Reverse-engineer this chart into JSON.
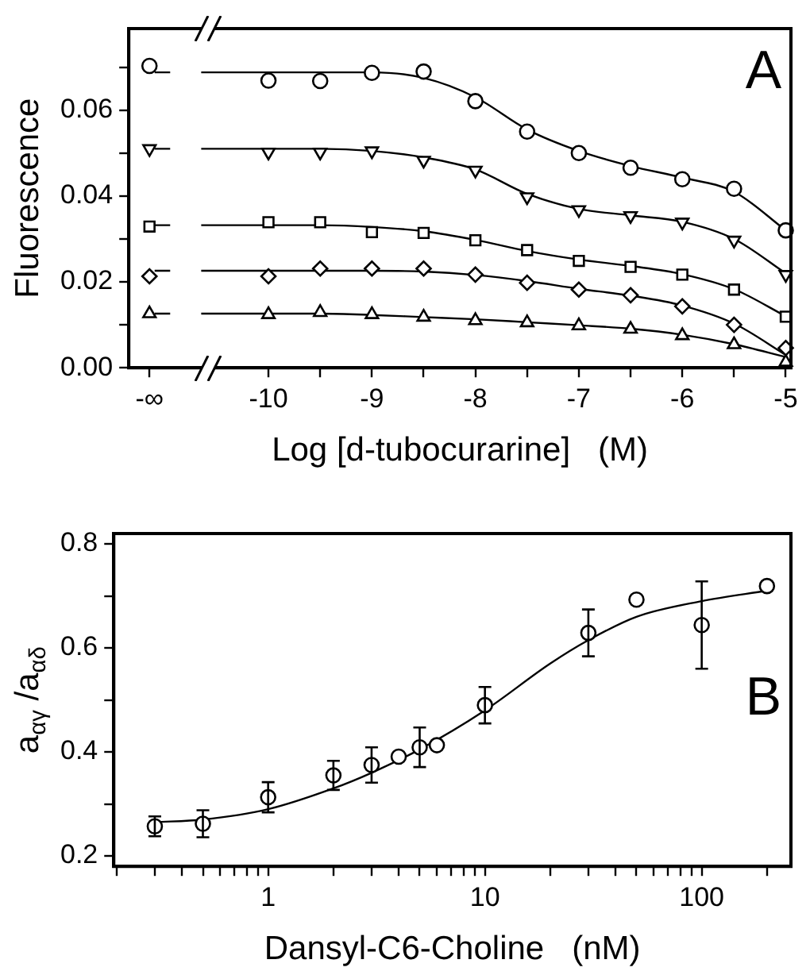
{
  "chart_data": [
    {
      "type": "scatter",
      "xlabel": "Log [d-tubocurarine]   (M)",
      "ylabel": "Fluorescence",
      "annotations": [
        "A"
      ],
      "x": [
        -11.15,
        -10,
        -9.5,
        -9,
        -8.5,
        -8,
        -7.5,
        -7,
        -6.5,
        -6,
        -5.5,
        -5
      ],
      "series": [
        {
          "color": "#000000",
          "marker": "circle",
          "values": [
            0.0703,
            0.0669,
            0.0668,
            0.0687,
            0.069,
            0.0621,
            0.055,
            0.05,
            0.0466,
            0.0439,
            0.0417,
            0.032
          ]
        },
        {
          "color": "#000000",
          "marker": "triangle-down",
          "values": [
            0.051,
            0.0502,
            0.0502,
            0.0505,
            0.0483,
            0.046,
            0.0398,
            0.0368,
            0.0354,
            0.0339,
            0.0297,
            0.0217
          ]
        },
        {
          "color": "#000000",
          "marker": "square",
          "values": [
            0.0329,
            0.0339,
            0.0339,
            0.0316,
            0.0314,
            0.0297,
            0.0274,
            0.0249,
            0.0235,
            0.0217,
            0.0182,
            0.0119
          ]
        },
        {
          "color": "#000000",
          "marker": "diamond",
          "values": [
            0.0213,
            0.0213,
            0.0231,
            0.0231,
            0.0231,
            0.0217,
            0.0198,
            0.0182,
            0.0169,
            0.0143,
            0.01,
            0.0046
          ]
        },
        {
          "color": "#000000",
          "marker": "triangle",
          "values": [
            0.0126,
            0.0124,
            0.0129,
            0.0124,
            0.0118,
            0.011,
            0.0105,
            0.0098,
            0.009,
            0.0075,
            0.0054,
            0.0013
          ]
        },
        {
          "type": "line",
          "color": "#000000",
          "marker": "none",
          "x": [
            -11.1,
            -10.95,
            -10.8,
            -10.65,
            -10,
            -9.5,
            -9,
            -8.5,
            -8,
            -7.5,
            -7,
            -6.5,
            -6,
            -5.5,
            -5
          ],
          "values": [
            0.0688,
            0.0688,
            null,
            0.0688,
            0.0688,
            0.0688,
            0.0688,
            0.0675,
            0.063,
            0.0555,
            0.0505,
            0.047,
            0.0443,
            0.041,
            0.032
          ]
        },
        {
          "type": "line",
          "color": "#000000",
          "marker": "none",
          "x": [
            -11.1,
            -10.95,
            -10.8,
            -10.65,
            -10,
            -9.5,
            -9,
            -8.5,
            -8,
            -7.5,
            -7,
            -6.5,
            -6,
            -5.5,
            -5
          ],
          "values": [
            0.051,
            0.051,
            null,
            0.051,
            0.051,
            0.051,
            0.0505,
            0.049,
            0.0462,
            0.0405,
            0.037,
            0.0355,
            0.034,
            0.03,
            0.022
          ]
        },
        {
          "type": "line",
          "color": "#000000",
          "marker": "none",
          "x": [
            -11.1,
            -10.95,
            -10.8,
            -10.65,
            -10,
            -9.5,
            -9,
            -8.5,
            -8,
            -7.5,
            -7,
            -6.5,
            -6,
            -5.5,
            -5
          ],
          "values": [
            0.0332,
            0.0332,
            null,
            0.0332,
            0.0332,
            0.0332,
            0.0328,
            0.0318,
            0.0298,
            0.0272,
            0.0252,
            0.0237,
            0.0218,
            0.0183,
            0.012
          ]
        },
        {
          "type": "line",
          "color": "#000000",
          "marker": "none",
          "x": [
            -11.1,
            -10.95,
            -10.8,
            -10.65,
            -10,
            -9.5,
            -9,
            -8.5,
            -8,
            -7.5,
            -7,
            -6.5,
            -6,
            -5.5,
            -5
          ],
          "values": [
            0.0226,
            0.0226,
            null,
            0.0226,
            0.0226,
            0.0226,
            0.0226,
            0.0224,
            0.0216,
            0.0202,
            0.0184,
            0.0168,
            0.0145,
            0.0103,
            0.003
          ]
        },
        {
          "type": "line",
          "color": "#000000",
          "marker": "none",
          "x": [
            -11.1,
            -10.95,
            -10.8,
            -10.65,
            -10,
            -9.5,
            -9,
            -8.5,
            -8,
            -7.5,
            -7,
            -6.5,
            -6,
            -5.5,
            -5
          ],
          "values": [
            0.0126,
            0.0126,
            null,
            0.0126,
            0.0126,
            0.0126,
            0.0123,
            0.0118,
            0.0113,
            0.0106,
            0.0099,
            0.0091,
            0.0077,
            0.0055,
            0.0025
          ]
        }
      ],
      "xlim": [
        -11.35,
        -4.95
      ],
      "ylim": [
        0,
        0.079
      ],
      "xticks": [
        {
          "value": -11.15,
          "label": "-∞"
        },
        -10,
        {
          "value": -9.5,
          "label": null
        },
        -9,
        {
          "value": -8.5,
          "label": null
        },
        -8,
        {
          "value": -7.5,
          "label": null
        },
        -7,
        {
          "value": -6.5,
          "label": null
        },
        -6,
        {
          "value": -5.5,
          "label": null
        },
        -5
      ],
      "yticks": [
        {
          "value": 0,
          "label": "0.00"
        },
        {
          "value": 0.01,
          "label": null
        },
        {
          "value": 0.02,
          "label": "0.02"
        },
        {
          "value": 0.03,
          "label": null
        },
        {
          "value": 0.04,
          "label": "0.04"
        },
        {
          "value": 0.05,
          "label": null
        },
        {
          "value": 0.06,
          "label": "0.06"
        },
        {
          "value": 0.07,
          "label": null
        }
      ]
    },
    {
      "type": "scatter",
      "xlabel": "Dansyl-C6-Choline   (nM)",
      "ylabel": "a$_{αγ}$ /a$_{αδ}$",
      "annotations": [
        "B"
      ],
      "log": "x",
      "x": [
        0.3,
        0.5,
        1,
        2,
        3,
        4,
        5,
        6,
        10,
        30,
        50,
        100,
        200
      ],
      "series": [
        {
          "color": "#000000",
          "marker": "circle",
          "values": [
            0.257,
            0.262,
            0.313,
            0.355,
            0.375,
            0.391,
            0.409,
            0.413,
            0.49,
            0.629,
            0.693,
            0.644,
            0.719
          ],
          "errors": [
            0.019,
            0.026,
            0.029,
            0.028,
            0.034,
            null,
            0.038,
            null,
            0.035,
            0.045,
            null,
            0.084,
            null
          ]
        },
        {
          "type": "line",
          "color": "#000000",
          "marker": "none",
          "x": [
            0.3,
            0.5,
            1,
            2,
            3,
            5,
            10,
            20,
            30,
            50,
            100,
            200
          ],
          "values": [
            0.265,
            0.27,
            0.29,
            0.33,
            0.36,
            0.405,
            0.48,
            0.57,
            0.615,
            0.66,
            0.69,
            0.71
          ]
        }
      ],
      "xlim": [
        0.194,
        258
      ],
      "ylim": [
        0.18,
        0.82
      ],
      "xticks": [
        {
          "value": 0.2,
          "label": null
        },
        {
          "value": 0.3,
          "label": null
        },
        {
          "value": 0.4,
          "label": null
        },
        {
          "value": 0.5,
          "label": null
        },
        {
          "value": 0.6,
          "label": null
        },
        {
          "value": 0.7,
          "label": null
        },
        {
          "value": 0.8,
          "label": null
        },
        {
          "value": 0.9,
          "label": null
        },
        1,
        {
          "value": 2,
          "label": null
        },
        {
          "value": 3,
          "label": null
        },
        {
          "value": 4,
          "label": null
        },
        {
          "value": 5,
          "label": null
        },
        {
          "value": 6,
          "label": null
        },
        {
          "value": 7,
          "label": null
        },
        {
          "value": 8,
          "label": null
        },
        {
          "value": 9,
          "label": null
        },
        10,
        {
          "value": 20,
          "label": null
        },
        {
          "value": 30,
          "label": null
        },
        {
          "value": 40,
          "label": null
        },
        {
          "value": 50,
          "label": null
        },
        {
          "value": 60,
          "label": null
        },
        {
          "value": 70,
          "label": null
        },
        {
          "value": 80,
          "label": null
        },
        {
          "value": 90,
          "label": null
        },
        100,
        {
          "value": 200,
          "label": null
        }
      ],
      "yticks": [
        0.2,
        {
          "value": 0.3,
          "label": null
        },
        0.4,
        {
          "value": 0.5,
          "label": null
        },
        0.6,
        {
          "value": 0.7,
          "label": null
        },
        0.8
      ]
    }
  ]
}
